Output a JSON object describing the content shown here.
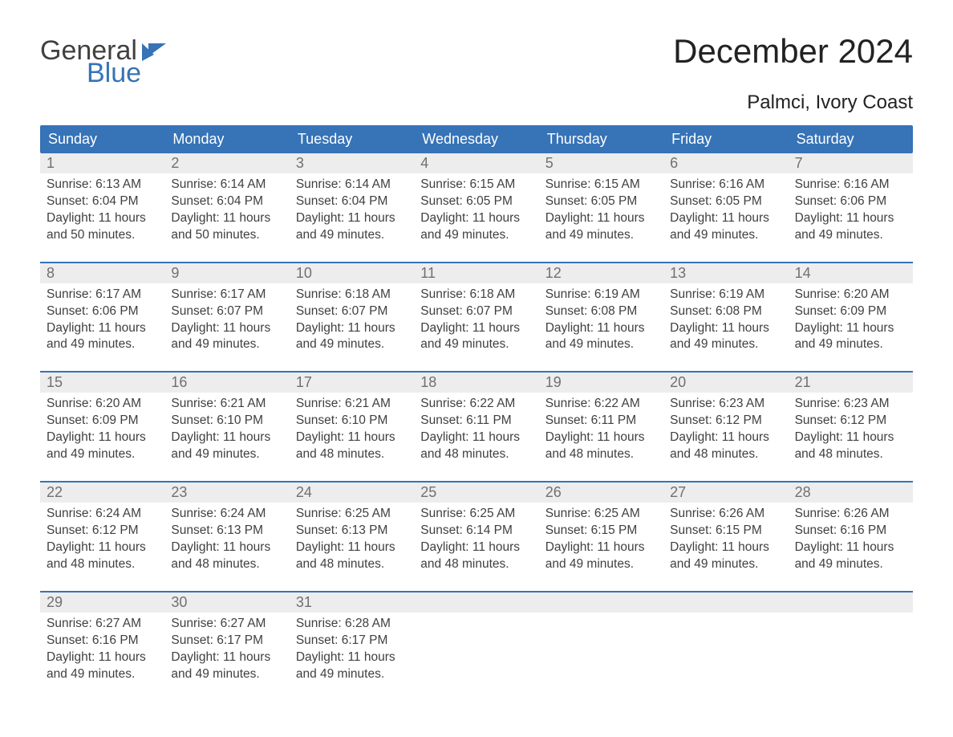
{
  "brand": {
    "word1": "General",
    "word2": "Blue",
    "accent_color": "#3673b7"
  },
  "title": "December 2024",
  "location": "Palmci, Ivory Coast",
  "colors": {
    "header_bg": "#3673b7",
    "header_text": "#ffffff",
    "daynum_bg": "#ededed",
    "daynum_text": "#707070",
    "body_text": "#404040",
    "page_bg": "#ffffff",
    "week_border": "#3673b7"
  },
  "typography": {
    "title_fontsize": 42,
    "location_fontsize": 24,
    "header_fontsize": 18,
    "daynum_fontsize": 18,
    "cell_fontsize": 15.5,
    "logo_fontsize": 34
  },
  "day_headers": [
    "Sunday",
    "Monday",
    "Tuesday",
    "Wednesday",
    "Thursday",
    "Friday",
    "Saturday"
  ],
  "weeks": [
    [
      {
        "n": "1",
        "sunrise": "6:13 AM",
        "sunset": "6:04 PM",
        "daylight": "11 hours and 50 minutes."
      },
      {
        "n": "2",
        "sunrise": "6:14 AM",
        "sunset": "6:04 PM",
        "daylight": "11 hours and 50 minutes."
      },
      {
        "n": "3",
        "sunrise": "6:14 AM",
        "sunset": "6:04 PM",
        "daylight": "11 hours and 49 minutes."
      },
      {
        "n": "4",
        "sunrise": "6:15 AM",
        "sunset": "6:05 PM",
        "daylight": "11 hours and 49 minutes."
      },
      {
        "n": "5",
        "sunrise": "6:15 AM",
        "sunset": "6:05 PM",
        "daylight": "11 hours and 49 minutes."
      },
      {
        "n": "6",
        "sunrise": "6:16 AM",
        "sunset": "6:05 PM",
        "daylight": "11 hours and 49 minutes."
      },
      {
        "n": "7",
        "sunrise": "6:16 AM",
        "sunset": "6:06 PM",
        "daylight": "11 hours and 49 minutes."
      }
    ],
    [
      {
        "n": "8",
        "sunrise": "6:17 AM",
        "sunset": "6:06 PM",
        "daylight": "11 hours and 49 minutes."
      },
      {
        "n": "9",
        "sunrise": "6:17 AM",
        "sunset": "6:07 PM",
        "daylight": "11 hours and 49 minutes."
      },
      {
        "n": "10",
        "sunrise": "6:18 AM",
        "sunset": "6:07 PM",
        "daylight": "11 hours and 49 minutes."
      },
      {
        "n": "11",
        "sunrise": "6:18 AM",
        "sunset": "6:07 PM",
        "daylight": "11 hours and 49 minutes."
      },
      {
        "n": "12",
        "sunrise": "6:19 AM",
        "sunset": "6:08 PM",
        "daylight": "11 hours and 49 minutes."
      },
      {
        "n": "13",
        "sunrise": "6:19 AM",
        "sunset": "6:08 PM",
        "daylight": "11 hours and 49 minutes."
      },
      {
        "n": "14",
        "sunrise": "6:20 AM",
        "sunset": "6:09 PM",
        "daylight": "11 hours and 49 minutes."
      }
    ],
    [
      {
        "n": "15",
        "sunrise": "6:20 AM",
        "sunset": "6:09 PM",
        "daylight": "11 hours and 49 minutes."
      },
      {
        "n": "16",
        "sunrise": "6:21 AM",
        "sunset": "6:10 PM",
        "daylight": "11 hours and 49 minutes."
      },
      {
        "n": "17",
        "sunrise": "6:21 AM",
        "sunset": "6:10 PM",
        "daylight": "11 hours and 48 minutes."
      },
      {
        "n": "18",
        "sunrise": "6:22 AM",
        "sunset": "6:11 PM",
        "daylight": "11 hours and 48 minutes."
      },
      {
        "n": "19",
        "sunrise": "6:22 AM",
        "sunset": "6:11 PM",
        "daylight": "11 hours and 48 minutes."
      },
      {
        "n": "20",
        "sunrise": "6:23 AM",
        "sunset": "6:12 PM",
        "daylight": "11 hours and 48 minutes."
      },
      {
        "n": "21",
        "sunrise": "6:23 AM",
        "sunset": "6:12 PM",
        "daylight": "11 hours and 48 minutes."
      }
    ],
    [
      {
        "n": "22",
        "sunrise": "6:24 AM",
        "sunset": "6:12 PM",
        "daylight": "11 hours and 48 minutes."
      },
      {
        "n": "23",
        "sunrise": "6:24 AM",
        "sunset": "6:13 PM",
        "daylight": "11 hours and 48 minutes."
      },
      {
        "n": "24",
        "sunrise": "6:25 AM",
        "sunset": "6:13 PM",
        "daylight": "11 hours and 48 minutes."
      },
      {
        "n": "25",
        "sunrise": "6:25 AM",
        "sunset": "6:14 PM",
        "daylight": "11 hours and 48 minutes."
      },
      {
        "n": "26",
        "sunrise": "6:25 AM",
        "sunset": "6:15 PM",
        "daylight": "11 hours and 49 minutes."
      },
      {
        "n": "27",
        "sunrise": "6:26 AM",
        "sunset": "6:15 PM",
        "daylight": "11 hours and 49 minutes."
      },
      {
        "n": "28",
        "sunrise": "6:26 AM",
        "sunset": "6:16 PM",
        "daylight": "11 hours and 49 minutes."
      }
    ],
    [
      {
        "n": "29",
        "sunrise": "6:27 AM",
        "sunset": "6:16 PM",
        "daylight": "11 hours and 49 minutes."
      },
      {
        "n": "30",
        "sunrise": "6:27 AM",
        "sunset": "6:17 PM",
        "daylight": "11 hours and 49 minutes."
      },
      {
        "n": "31",
        "sunrise": "6:28 AM",
        "sunset": "6:17 PM",
        "daylight": "11 hours and 49 minutes."
      },
      null,
      null,
      null,
      null
    ]
  ],
  "labels": {
    "sunrise": "Sunrise: ",
    "sunset": "Sunset: ",
    "daylight": "Daylight: "
  }
}
